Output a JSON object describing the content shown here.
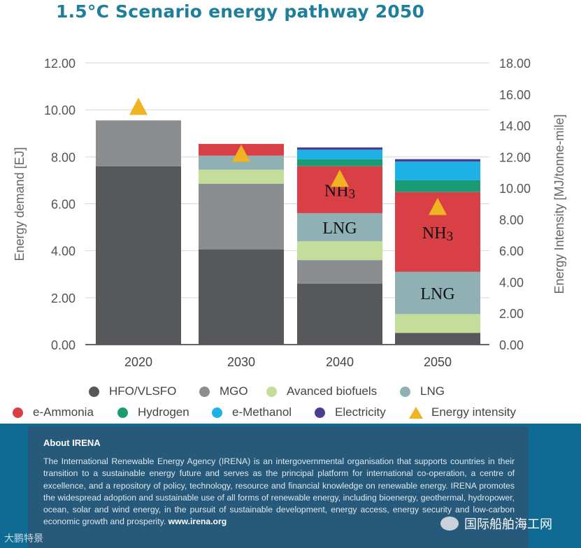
{
  "title": "1.5°C Scenario energy pathway 2050",
  "chart_data": {
    "type": "bar",
    "stacked": true,
    "categories": [
      "2020",
      "2030",
      "2040",
      "2050"
    ],
    "ylabel": "Energy demand [EJ]",
    "y2label": "Energy Intensity [MJ/tonne-mile]",
    "ylim": [
      0,
      12
    ],
    "y2lim": [
      0,
      18
    ],
    "yticks": [
      "0.00",
      "2.00",
      "4.00",
      "6.00",
      "8.00",
      "10.00",
      "12.00"
    ],
    "y2ticks": [
      "0.00",
      "2.00",
      "4.00",
      "6.00",
      "8.00",
      "10.00",
      "12.00",
      "14.00",
      "16.00",
      "18.00"
    ],
    "series": [
      {
        "name": "HFO/VLSFO",
        "color": "#56585b",
        "values": [
          7.6,
          4.05,
          2.6,
          0.5
        ]
      },
      {
        "name": "MGO",
        "color": "#8b8e91",
        "values": [
          1.95,
          2.8,
          1.0,
          0.0
        ]
      },
      {
        "name": "Avanced biofuels",
        "color": "#c5dd9b",
        "values": [
          0.0,
          0.6,
          0.8,
          0.8
        ]
      },
      {
        "name": "LNG",
        "color": "#8fb1b4",
        "values": [
          0.0,
          0.6,
          1.2,
          1.8
        ]
      },
      {
        "name": "e-Ammonia",
        "color": "#d84045",
        "values": [
          0.0,
          0.5,
          2.0,
          3.4
        ]
      },
      {
        "name": "Hydrogen",
        "color": "#1a9b76",
        "values": [
          0.0,
          0.0,
          0.3,
          0.5
        ]
      },
      {
        "name": "e-Methanol",
        "color": "#1db2e6",
        "values": [
          0.0,
          0.0,
          0.4,
          0.8
        ]
      },
      {
        "name": "Electricity",
        "color": "#4b3d92",
        "values": [
          0.0,
          0.0,
          0.1,
          0.1
        ]
      }
    ],
    "energy_intensity": {
      "name": "Energy intensity",
      "color": "#f0b323",
      "values": [
        15.2,
        12.2,
        10.6,
        8.8
      ]
    },
    "bar_labels": [
      {
        "category": "2040",
        "series": "e-Ammonia",
        "text": "NH3"
      },
      {
        "category": "2040",
        "series": "LNG",
        "text": "LNG"
      },
      {
        "category": "2050",
        "series": "e-Ammonia",
        "text": "NH3"
      },
      {
        "category": "2050",
        "series": "LNG",
        "text": "LNG"
      }
    ]
  },
  "about": {
    "heading": "About IRENA",
    "body": "The International Renewable Energy Agency (IRENA) is an intergovernmental organisation that supports countries in their transition to a sustainable energy future and serves as the principal platform for international co-operation, a centre of excellence, and a repository of policy, technology, resource and financial knowledge on renewable energy. IRENA promotes the widespread adoption and sustainable use of all forms of renewable energy, including bioenergy, geothermal, hydropower, ocean, solar and wind energy, in the pursuit of sustainable development, energy access, energy security and low-carbon economic growth and prosperity.",
    "url": "www.irena.org"
  },
  "watermarks": {
    "wechat_name": "国际船舶海工网",
    "weibo_name": "大鹏特景"
  }
}
